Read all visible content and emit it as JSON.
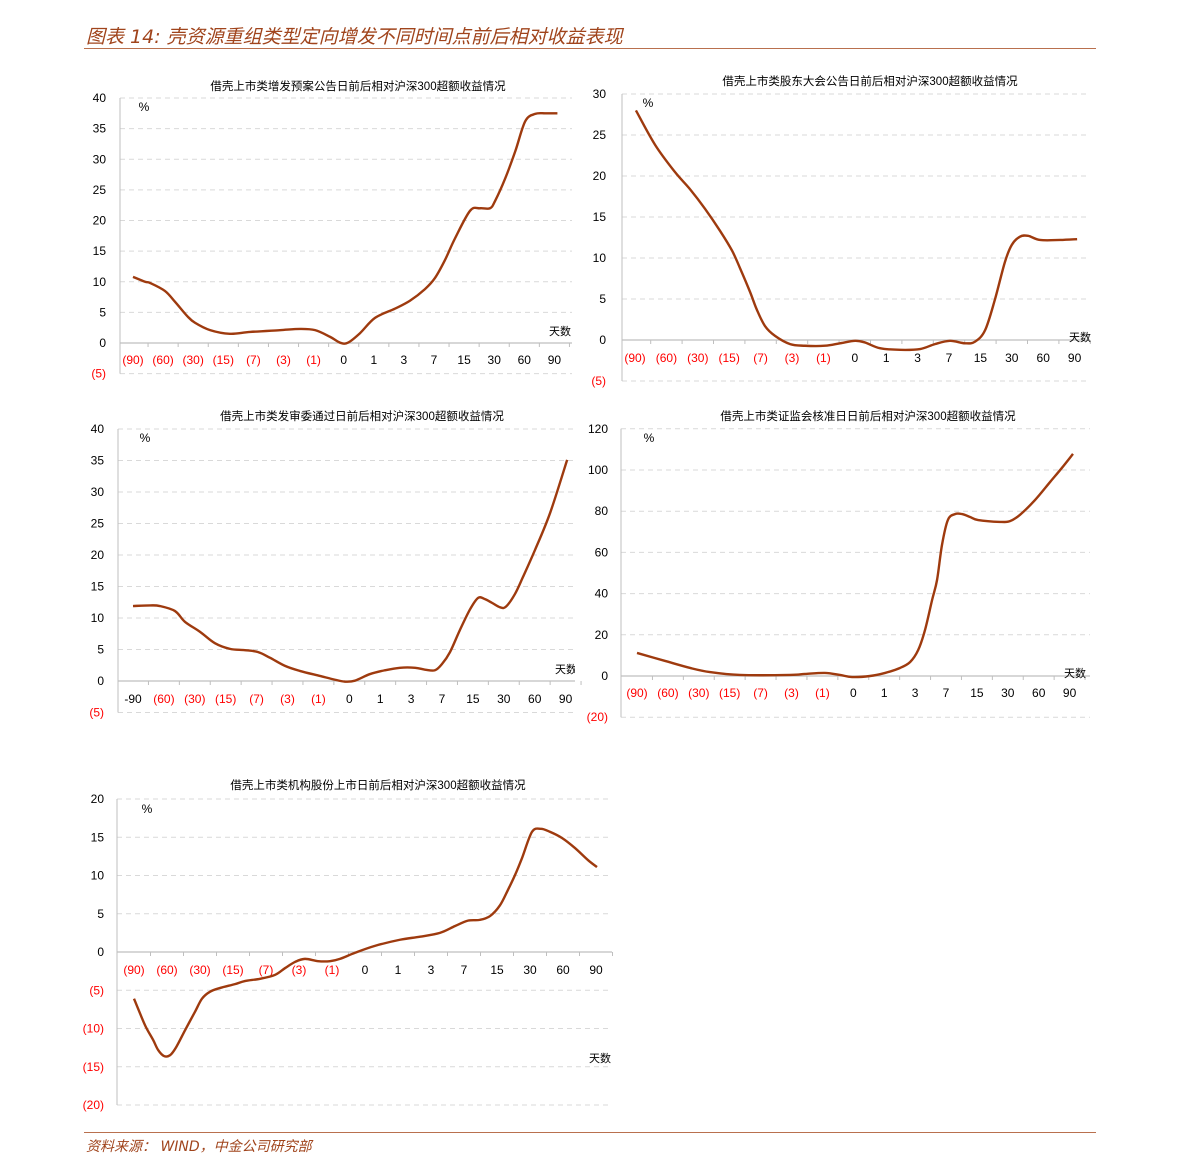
{
  "figure_title": "图表 14:  壳资源重组类型定向增发不同时间点前后相对收益表现",
  "source": "资料来源：  WIND，中金公司研究部",
  "colors": {
    "line": "#9e3a0e",
    "negative_label": "#ff0000",
    "title": "#a0441c",
    "grid": "#d9d9d9"
  },
  "chart_data": [
    {
      "type": "line",
      "title": "借壳上市类增发预案公告日前后相对沪深300超额收益情况",
      "ylabel": "%",
      "xlabel": "天数",
      "ylim": [
        -5,
        40
      ],
      "ystep": 5,
      "y_tick_labels": [
        "(5)",
        "0",
        "5",
        "10",
        "15",
        "20",
        "25",
        "30",
        "35",
        "40"
      ],
      "categories": [
        "(90)",
        "(60)",
        "(30)",
        "(15)",
        "(7)",
        "(3)",
        "(1)",
        "0",
        "1",
        "3",
        "7",
        "15",
        "30",
        "60",
        "90"
      ],
      "grid": true,
      "series": [
        {
          "points": [
            [
              0,
              10.8
            ],
            [
              0.4,
              10.0
            ],
            [
              0.57,
              9.8
            ],
            [
              1.06,
              8.5
            ],
            [
              1.4,
              6.7
            ],
            [
              1.8,
              4.4
            ],
            [
              2.06,
              3.3
            ],
            [
              2.56,
              2.1
            ],
            [
              3.22,
              1.5
            ],
            [
              3.89,
              1.8
            ],
            [
              4.88,
              2.1
            ],
            [
              5.55,
              2.3
            ],
            [
              6.05,
              2.1
            ],
            [
              6.55,
              1.0
            ],
            [
              6.88,
              0.05
            ],
            [
              7.14,
              0.05
            ],
            [
              7.54,
              1.6
            ],
            [
              8.04,
              4.1
            ],
            [
              8.7,
              5.6
            ],
            [
              9.2,
              6.9
            ],
            [
              9.7,
              8.8
            ],
            [
              10.03,
              10.6
            ],
            [
              10.36,
              13.5
            ],
            [
              10.7,
              17.1
            ],
            [
              11.2,
              21.6
            ],
            [
              11.53,
              22.0
            ],
            [
              11.86,
              22.0
            ],
            [
              12.03,
              23.2
            ],
            [
              12.36,
              26.8
            ],
            [
              12.7,
              31.3
            ],
            [
              13.03,
              36.2
            ],
            [
              13.36,
              37.4
            ],
            [
              13.7,
              37.5
            ],
            [
              14.1,
              37.5
            ]
          ]
        }
      ]
    },
    {
      "type": "line",
      "title": "借壳上市类股东大会公告日前后相对沪深300超额收益情况",
      "ylabel": "%",
      "xlabel": "天数",
      "ylim": [
        -5,
        30
      ],
      "ystep": 5,
      "y_tick_labels": [
        "(5)",
        "0",
        "5",
        "10",
        "15",
        "20",
        "25",
        "30"
      ],
      "categories": [
        "(90)",
        "(60)",
        "(30)",
        "(15)",
        "(7)",
        "(3)",
        "(1)",
        "0",
        "1",
        "3",
        "7",
        "15",
        "30",
        "60",
        "90"
      ],
      "grid": true,
      "series": [
        {
          "points": [
            [
              0.03,
              28.0
            ],
            [
              0.64,
              23.8
            ],
            [
              1.27,
              20.5
            ],
            [
              1.75,
              18.4
            ],
            [
              2.23,
              16.0
            ],
            [
              2.71,
              13.3
            ],
            [
              3.09,
              10.9
            ],
            [
              3.34,
              8.8
            ],
            [
              3.66,
              5.9
            ],
            [
              3.88,
              3.7
            ],
            [
              4.14,
              1.7
            ],
            [
              4.46,
              0.5
            ],
            [
              4.94,
              -0.5
            ],
            [
              5.41,
              -0.7
            ],
            [
              6.05,
              -0.7
            ],
            [
              6.53,
              -0.4
            ],
            [
              7.01,
              -0.1
            ],
            [
              7.32,
              -0.3
            ],
            [
              7.8,
              -1.0
            ],
            [
              8.44,
              -1.2
            ],
            [
              9.08,
              -1.1
            ],
            [
              9.55,
              -0.5
            ],
            [
              10.03,
              -0.1
            ],
            [
              10.51,
              -0.4
            ],
            [
              10.83,
              -0.2
            ],
            [
              11.15,
              1.2
            ],
            [
              11.46,
              4.9
            ],
            [
              11.78,
              9.5
            ],
            [
              12.0,
              11.6
            ],
            [
              12.26,
              12.6
            ],
            [
              12.52,
              12.7
            ],
            [
              12.9,
              12.2
            ],
            [
              13.54,
              12.2
            ],
            [
              14.08,
              12.3
            ]
          ]
        }
      ]
    },
    {
      "type": "line",
      "title": "借壳上市类发审委通过日前后相对沪深300超额收益情况",
      "ylabel": "%",
      "xlabel": "天数",
      "ylim": [
        -5,
        40
      ],
      "ystep": 5,
      "y_tick_labels": [
        "(5)",
        "0",
        "5",
        "10",
        "15",
        "20",
        "25",
        "30",
        "35",
        "40"
      ],
      "categories": [
        "-90",
        "(60)",
        "(30)",
        "(15)",
        "(7)",
        "(3)",
        "(1)",
        "0",
        "1",
        "3",
        "7",
        "15",
        "30",
        "60",
        "90"
      ],
      "grid": true,
      "series": [
        {
          "points": [
            [
              0,
              11.9
            ],
            [
              0.55,
              12.0
            ],
            [
              0.87,
              11.9
            ],
            [
              1.36,
              11.1
            ],
            [
              1.68,
              9.4
            ],
            [
              2.17,
              7.8
            ],
            [
              2.65,
              6.0
            ],
            [
              3.14,
              5.1
            ],
            [
              3.62,
              4.9
            ],
            [
              4.04,
              4.6
            ],
            [
              4.43,
              3.7
            ],
            [
              4.92,
              2.4
            ],
            [
              5.4,
              1.6
            ],
            [
              6.05,
              0.8
            ],
            [
              6.54,
              0.2
            ],
            [
              6.86,
              -0.1
            ],
            [
              7.18,
              0.05
            ],
            [
              7.67,
              1.1
            ],
            [
              8.15,
              1.7
            ],
            [
              8.64,
              2.1
            ],
            [
              9.13,
              2.1
            ],
            [
              9.45,
              1.8
            ],
            [
              9.77,
              1.7
            ],
            [
              10.0,
              2.7
            ],
            [
              10.26,
              4.6
            ],
            [
              10.58,
              8.1
            ],
            [
              10.91,
              11.4
            ],
            [
              11.17,
              13.2
            ],
            [
              11.39,
              13.0
            ],
            [
              11.62,
              12.4
            ],
            [
              11.88,
              11.7
            ],
            [
              12.07,
              11.8
            ],
            [
              12.36,
              13.8
            ],
            [
              12.62,
              16.5
            ],
            [
              13.01,
              20.8
            ],
            [
              13.5,
              26.7
            ],
            [
              14.05,
              35.1
            ]
          ]
        }
      ]
    },
    {
      "type": "line",
      "title": "借壳上市类证监会核准日日前后相对沪深300超额收益情况",
      "ylabel": "%",
      "xlabel": "天数",
      "ylim": [
        -20,
        120
      ],
      "ystep": 20,
      "y_tick_labels": [
        "(20)",
        "0",
        "20",
        "40",
        "60",
        "80",
        "100",
        "120"
      ],
      "categories": [
        "(90)",
        "(60)",
        "(30)",
        "(15)",
        "(7)",
        "(3)",
        "(1)",
        "0",
        "1",
        "3",
        "7",
        "15",
        "30",
        "60",
        "90"
      ],
      "grid": true,
      "series": [
        {
          "points": [
            [
              0,
              11.2
            ],
            [
              0.91,
              7.3
            ],
            [
              1.72,
              3.9
            ],
            [
              2.36,
              1.9
            ],
            [
              3.33,
              0.5
            ],
            [
              4.95,
              0.5
            ],
            [
              5.44,
              1.0
            ],
            [
              6.08,
              1.5
            ],
            [
              6.57,
              0.5
            ],
            [
              6.96,
              -0.5
            ],
            [
              7.54,
              0.0
            ],
            [
              8.03,
              1.5
            ],
            [
              8.51,
              3.9
            ],
            [
              8.84,
              6.8
            ],
            [
              9.1,
              12.6
            ],
            [
              9.32,
              22.3
            ],
            [
              9.55,
              36.9
            ],
            [
              9.71,
              46.6
            ],
            [
              9.87,
              63.6
            ],
            [
              10.06,
              75.7
            ],
            [
              10.29,
              78.6
            ],
            [
              10.52,
              78.6
            ],
            [
              10.78,
              77.2
            ],
            [
              11.04,
              75.7
            ],
            [
              11.75,
              74.8
            ],
            [
              12.07,
              75.2
            ],
            [
              12.39,
              78.2
            ],
            [
              12.88,
              85.4
            ],
            [
              13.37,
              94.2
            ],
            [
              13.75,
              101.0
            ],
            [
              14.11,
              107.8
            ]
          ]
        }
      ]
    },
    {
      "type": "line",
      "title": "借壳上市类机构股份上市日前后相对沪深300超额收益情况",
      "ylabel": "%",
      "xlabel": "天数",
      "ylim": [
        -20,
        20
      ],
      "ystep": 5,
      "y_tick_labels": [
        "(20)",
        "(15)",
        "(10)",
        "(5)",
        "0",
        "5",
        "10",
        "15",
        "20"
      ],
      "categories": [
        "(90)",
        "(60)",
        "(30)",
        "(15)",
        "(7)",
        "(3)",
        "(1)",
        "0",
        "1",
        "3",
        "7",
        "15",
        "30",
        "60",
        "90"
      ],
      "grid": true,
      "series": [
        {
          "points": [
            [
              0,
              -6.1
            ],
            [
              0.18,
              -8.0
            ],
            [
              0.36,
              -9.8
            ],
            [
              0.58,
              -11.5
            ],
            [
              0.73,
              -12.8
            ],
            [
              0.91,
              -13.6
            ],
            [
              1.09,
              -13.5
            ],
            [
              1.27,
              -12.5
            ],
            [
              1.55,
              -10.2
            ],
            [
              1.85,
              -7.8
            ],
            [
              2.06,
              -6.1
            ],
            [
              2.3,
              -5.2
            ],
            [
              2.61,
              -4.7
            ],
            [
              3.06,
              -4.2
            ],
            [
              3.36,
              -3.8
            ],
            [
              3.82,
              -3.5
            ],
            [
              4.27,
              -3.0
            ],
            [
              4.58,
              -2.1
            ],
            [
              4.88,
              -1.3
            ],
            [
              5.18,
              -0.9
            ],
            [
              5.58,
              -1.2
            ],
            [
              5.94,
              -1.2
            ],
            [
              6.24,
              -0.9
            ],
            [
              6.7,
              -0.1
            ],
            [
              7.3,
              0.8
            ],
            [
              8.06,
              1.6
            ],
            [
              8.67,
              2.0
            ],
            [
              9.27,
              2.5
            ],
            [
              9.73,
              3.4
            ],
            [
              10.12,
              4.1
            ],
            [
              10.48,
              4.2
            ],
            [
              10.79,
              4.7
            ],
            [
              11.09,
              6.1
            ],
            [
              11.33,
              8.1
            ],
            [
              11.55,
              10.1
            ],
            [
              11.76,
              12.3
            ],
            [
              12.06,
              15.7
            ],
            [
              12.33,
              16.1
            ],
            [
              12.61,
              15.7
            ],
            [
              12.97,
              14.9
            ],
            [
              13.36,
              13.6
            ],
            [
              13.76,
              12.0
            ],
            [
              14.03,
              11.1
            ]
          ]
        }
      ]
    }
  ]
}
